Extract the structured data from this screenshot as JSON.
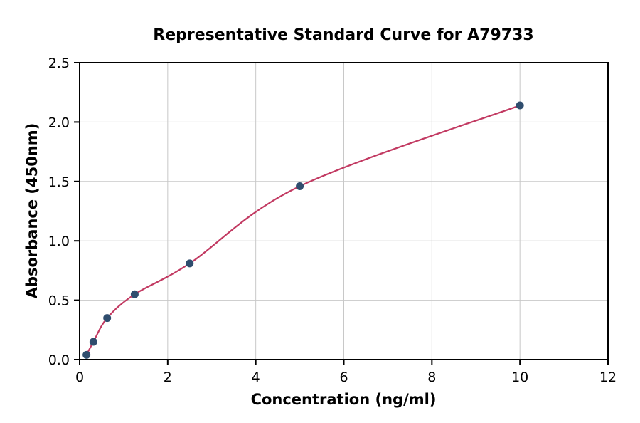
{
  "chart_data": {
    "type": "scatter",
    "title": "Representative Standard Curve for A79733",
    "xlabel": "Concentration (ng/ml)",
    "ylabel": "Absorbance (450nm)",
    "xlim": [
      0,
      12
    ],
    "ylim": [
      0,
      2.5
    ],
    "xtick_values": [
      0,
      2,
      4,
      6,
      8,
      10,
      12
    ],
    "xtick_labels": [
      "0",
      "2",
      "4",
      "6",
      "8",
      "10",
      "12"
    ],
    "ytick_values": [
      0,
      0.5,
      1.0,
      1.5,
      2.0,
      2.5
    ],
    "ytick_labels": [
      "0.0",
      "0.5",
      "1.0",
      "1.5",
      "2.0",
      "2.5"
    ],
    "grid": true,
    "grid_color": "#c8c8c8",
    "x": [
      0.156,
      0.313,
      0.625,
      1.25,
      2.5,
      5,
      10
    ],
    "y": [
      0.04,
      0.15,
      0.35,
      0.55,
      0.81,
      1.46,
      2.14
    ],
    "marker_color": "#2f4d6e",
    "curve_color": "#c23a62",
    "curve": "smooth-fit-through-points",
    "legend": "none"
  }
}
